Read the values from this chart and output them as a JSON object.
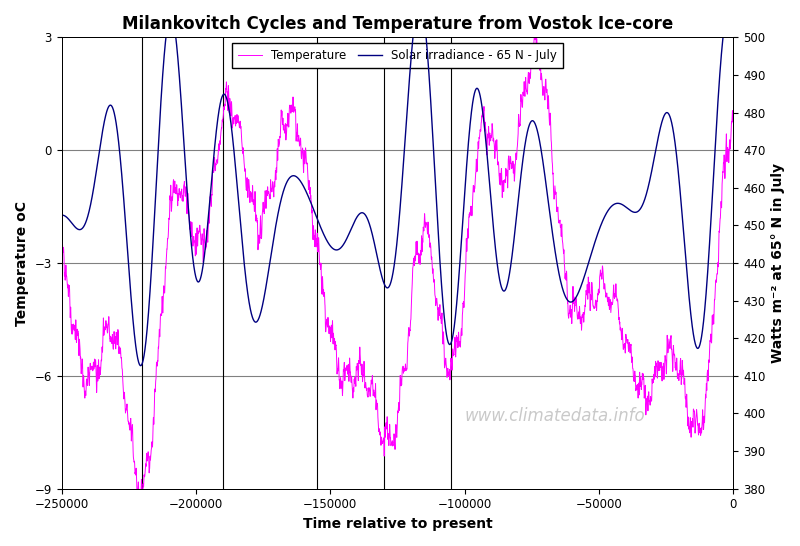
{
  "title": "Milankovitch Cycles and Temperature from Vostok Ice-core",
  "xlabel": "Time relative to present",
  "ylabel_left": "Temperature oC",
  "ylabel_right": "Watts m⁻² at 65° N in July",
  "legend_temp": "Temperature",
  "legend_solar": "Solar irradiance - 65 N - July",
  "xlim": [
    -250000,
    0
  ],
  "ylim_left": [
    -9,
    3
  ],
  "ylim_right": [
    380,
    500
  ],
  "xticks": [
    -250000,
    -200000,
    -150000,
    -100000,
    -50000,
    0
  ],
  "yticks_left": [
    -9,
    -6,
    -3,
    0,
    3
  ],
  "yticks_right": [
    380,
    390,
    400,
    410,
    420,
    430,
    440,
    450,
    460,
    470,
    480,
    490,
    500
  ],
  "color_temp": "#FF00FF",
  "color_solar": "#000080",
  "background_color": "#FFFFFF",
  "watermark": "www.climatedata.info",
  "watermark_color": "#C0C0C0",
  "vline_positions": [
    -220000,
    -190000,
    -155000,
    -130000,
    -105000
  ],
  "grid_yticks": [
    -6,
    -3,
    0
  ],
  "title_fontsize": 12,
  "axis_label_fontsize": 10,
  "solar_mean": 455,
  "solar_amp_prec": 20,
  "solar_amp_obl": 12,
  "solar_amp_ecc": 8,
  "temp_mean": -3.0,
  "temp_amp1": 3.5,
  "temp_amp2": 1.5,
  "temp_amp3": 0.7,
  "temp_noise": 0.5
}
